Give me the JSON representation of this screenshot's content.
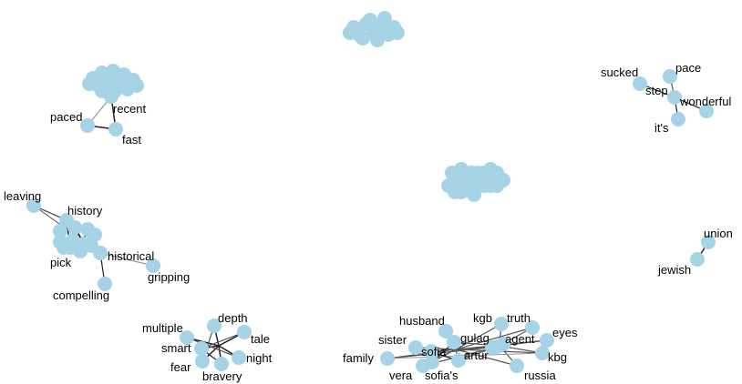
{
  "colors": {
    "node": "#a6d3e5",
    "edge_dark": "#222222",
    "edge_mid": "#555555",
    "edge_light": "#999999",
    "label": "#000000",
    "background": "#ffffff"
  },
  "labels": {
    "paced": "paced",
    "recent": "recent",
    "fast": "fast",
    "sucked": "sucked",
    "pace": "pace",
    "step": "step",
    "wonderful": "wonderful",
    "its": "it's",
    "leaving": "leaving",
    "history": "history",
    "pick": "pick",
    "historical": "historical",
    "gripping": "gripping",
    "compelling": "compelling",
    "union": "union",
    "jewish": "jewish",
    "depth": "depth",
    "multiple": "multiple",
    "tale": "tale",
    "smart": "smart",
    "night": "night",
    "fear": "fear",
    "bravery": "bravery",
    "husband": "husband",
    "kgb": "kgb",
    "truth": "truth",
    "eyes": "eyes",
    "sister": "sister",
    "gulag": "gulag",
    "agent": "agent",
    "sofia": "sofia",
    "artur": "artur",
    "family": "family",
    "kbg": "kbg",
    "vera": "vera",
    "sofias": "sofia's",
    "russia": "russia"
  }
}
